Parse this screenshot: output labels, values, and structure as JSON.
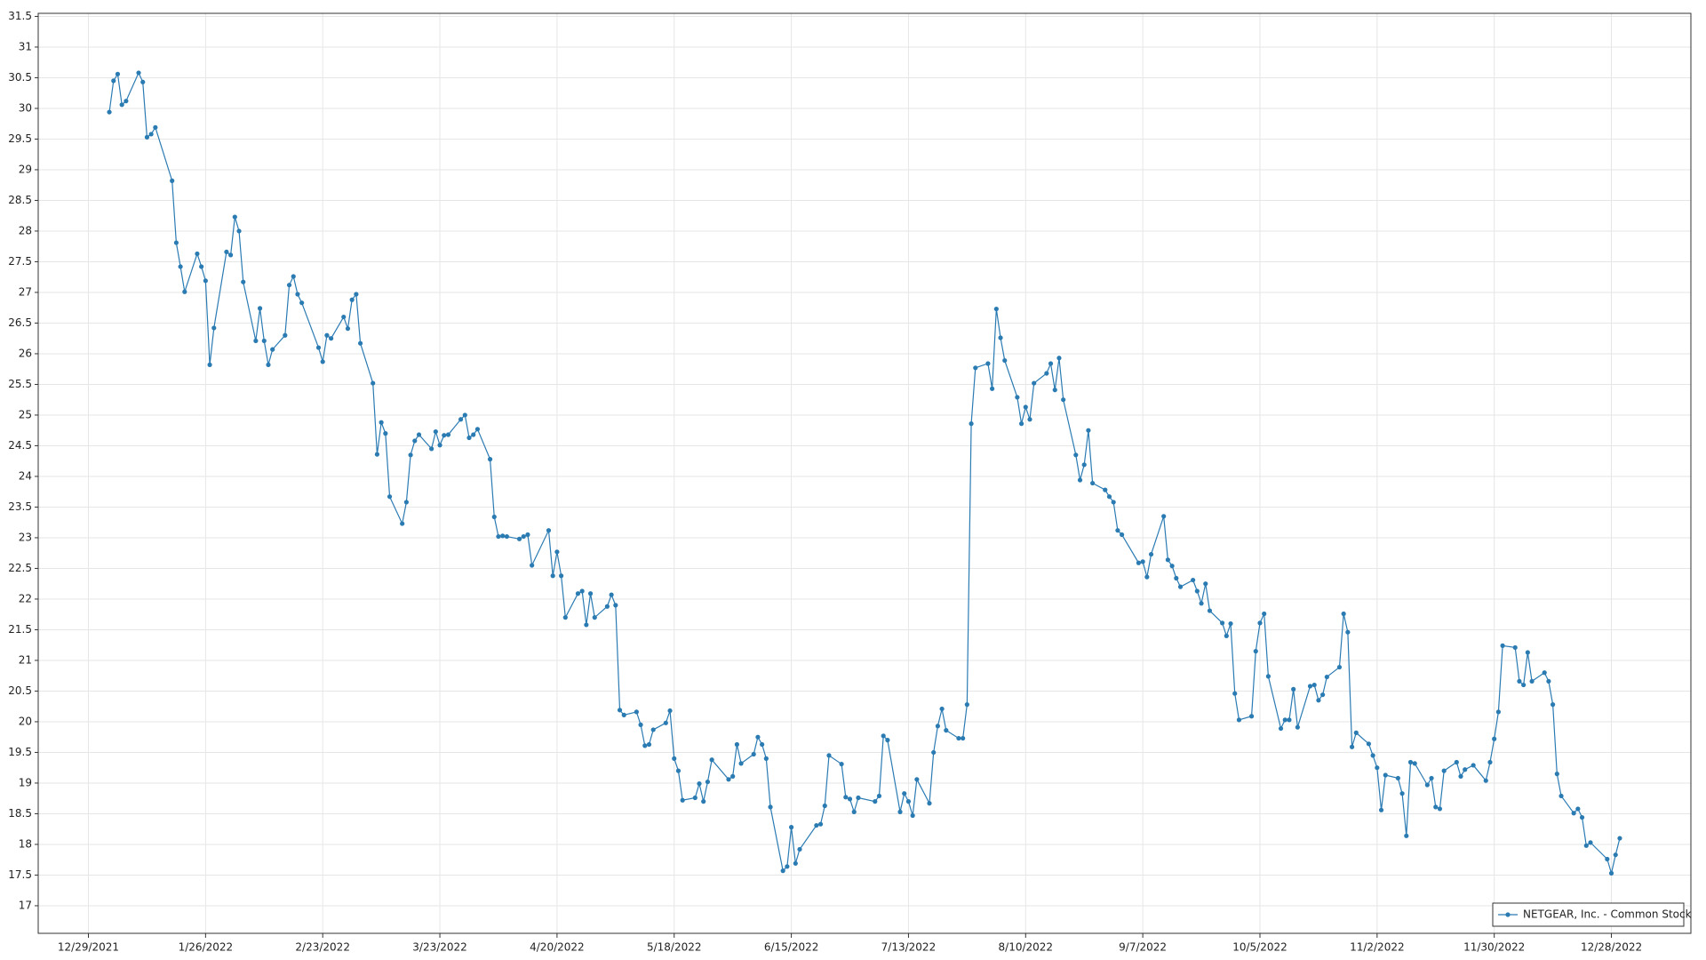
{
  "chart_data": {
    "type": "line",
    "x": [
      "2022-01-03",
      "2022-01-04",
      "2022-01-05",
      "2022-01-06",
      "2022-01-07",
      "2022-01-10",
      "2022-01-11",
      "2022-01-12",
      "2022-01-13",
      "2022-01-14",
      "2022-01-18",
      "2022-01-19",
      "2022-01-20",
      "2022-01-21",
      "2022-01-24",
      "2022-01-25",
      "2022-01-26",
      "2022-01-27",
      "2022-01-28",
      "2022-01-31",
      "2022-02-01",
      "2022-02-02",
      "2022-02-03",
      "2022-02-04",
      "2022-02-07",
      "2022-02-08",
      "2022-02-09",
      "2022-02-10",
      "2022-02-11",
      "2022-02-14",
      "2022-02-15",
      "2022-02-16",
      "2022-02-17",
      "2022-02-18",
      "2022-02-22",
      "2022-02-23",
      "2022-02-24",
      "2022-02-25",
      "2022-02-28",
      "2022-03-01",
      "2022-03-02",
      "2022-03-03",
      "2022-03-04",
      "2022-03-07",
      "2022-03-08",
      "2022-03-09",
      "2022-03-10",
      "2022-03-11",
      "2022-03-14",
      "2022-03-15",
      "2022-03-16",
      "2022-03-17",
      "2022-03-18",
      "2022-03-21",
      "2022-03-22",
      "2022-03-23",
      "2022-03-24",
      "2022-03-25",
      "2022-03-28",
      "2022-03-29",
      "2022-03-30",
      "2022-03-31",
      "2022-04-01",
      "2022-04-04",
      "2022-04-05",
      "2022-04-06",
      "2022-04-07",
      "2022-04-08",
      "2022-04-11",
      "2022-04-12",
      "2022-04-13",
      "2022-04-14",
      "2022-04-18",
      "2022-04-19",
      "2022-04-20",
      "2022-04-21",
      "2022-04-22",
      "2022-04-25",
      "2022-04-26",
      "2022-04-27",
      "2022-04-28",
      "2022-04-29",
      "2022-05-02",
      "2022-05-03",
      "2022-05-04",
      "2022-05-05",
      "2022-05-06",
      "2022-05-09",
      "2022-05-10",
      "2022-05-11",
      "2022-05-12",
      "2022-05-13",
      "2022-05-16",
      "2022-05-17",
      "2022-05-18",
      "2022-05-19",
      "2022-05-20",
      "2022-05-23",
      "2022-05-24",
      "2022-05-25",
      "2022-05-26",
      "2022-05-27",
      "2022-05-31",
      "2022-06-01",
      "2022-06-02",
      "2022-06-03",
      "2022-06-06",
      "2022-06-07",
      "2022-06-08",
      "2022-06-09",
      "2022-06-10",
      "2022-06-13",
      "2022-06-14",
      "2022-06-15",
      "2022-06-16",
      "2022-06-17",
      "2022-06-21",
      "2022-06-22",
      "2022-06-23",
      "2022-06-24",
      "2022-06-27",
      "2022-06-28",
      "2022-06-29",
      "2022-06-30",
      "2022-07-01",
      "2022-07-05",
      "2022-07-06",
      "2022-07-07",
      "2022-07-08",
      "2022-07-11",
      "2022-07-12",
      "2022-07-13",
      "2022-07-14",
      "2022-07-15",
      "2022-07-18",
      "2022-07-19",
      "2022-07-20",
      "2022-07-21",
      "2022-07-22",
      "2022-07-25",
      "2022-07-26",
      "2022-07-27",
      "2022-07-28",
      "2022-07-29",
      "2022-08-01",
      "2022-08-02",
      "2022-08-03",
      "2022-08-04",
      "2022-08-05",
      "2022-08-08",
      "2022-08-09",
      "2022-08-10",
      "2022-08-11",
      "2022-08-12",
      "2022-08-15",
      "2022-08-16",
      "2022-08-17",
      "2022-08-18",
      "2022-08-19",
      "2022-08-22",
      "2022-08-23",
      "2022-08-24",
      "2022-08-25",
      "2022-08-26",
      "2022-08-29",
      "2022-08-30",
      "2022-08-31",
      "2022-09-01",
      "2022-09-02",
      "2022-09-06",
      "2022-09-07",
      "2022-09-08",
      "2022-09-09",
      "2022-09-12",
      "2022-09-13",
      "2022-09-14",
      "2022-09-15",
      "2022-09-16",
      "2022-09-19",
      "2022-09-20",
      "2022-09-21",
      "2022-09-22",
      "2022-09-23",
      "2022-09-26",
      "2022-09-27",
      "2022-09-28",
      "2022-09-29",
      "2022-09-30",
      "2022-10-03",
      "2022-10-04",
      "2022-10-05",
      "2022-10-06",
      "2022-10-07",
      "2022-10-10",
      "2022-10-11",
      "2022-10-12",
      "2022-10-13",
      "2022-10-14",
      "2022-10-17",
      "2022-10-18",
      "2022-10-19",
      "2022-10-20",
      "2022-10-21",
      "2022-10-24",
      "2022-10-25",
      "2022-10-26",
      "2022-10-27",
      "2022-10-28",
      "2022-10-31",
      "2022-11-01",
      "2022-11-02",
      "2022-11-03",
      "2022-11-04",
      "2022-11-07",
      "2022-11-08",
      "2022-11-09",
      "2022-11-10",
      "2022-11-11",
      "2022-11-14",
      "2022-11-15",
      "2022-11-16",
      "2022-11-17",
      "2022-11-18",
      "2022-11-21",
      "2022-11-22",
      "2022-11-23",
      "2022-11-25",
      "2022-11-28",
      "2022-11-29",
      "2022-11-30",
      "2022-12-01",
      "2022-12-02",
      "2022-12-05",
      "2022-12-06",
      "2022-12-07",
      "2022-12-08",
      "2022-12-09",
      "2022-12-12",
      "2022-12-13",
      "2022-12-14",
      "2022-12-15",
      "2022-12-16",
      "2022-12-19",
      "2022-12-20",
      "2022-12-21",
      "2022-12-22",
      "2022-12-23",
      "2022-12-27",
      "2022-12-28",
      "2022-12-29",
      "2022-12-30"
    ],
    "series": [
      {
        "name": "NETGEAR, Inc. - Common Stock",
        "color": "#2b7bb3",
        "values": [
          29.94,
          30.45,
          30.56,
          30.06,
          30.12,
          30.58,
          30.43,
          29.53,
          29.58,
          29.69,
          28.82,
          27.81,
          27.42,
          27.01,
          27.63,
          27.42,
          27.19,
          25.82,
          26.42,
          27.66,
          27.61,
          28.23,
          28.0,
          27.17,
          26.21,
          26.74,
          26.21,
          25.82,
          26.07,
          26.3,
          27.12,
          27.26,
          26.97,
          26.83,
          26.1,
          25.87,
          26.3,
          26.25,
          26.6,
          26.41,
          26.88,
          26.97,
          26.17,
          25.52,
          24.36,
          24.88,
          24.7,
          23.67,
          23.23,
          23.58,
          24.35,
          24.58,
          24.68,
          24.45,
          24.73,
          24.51,
          24.67,
          24.68,
          24.93,
          25.0,
          24.63,
          24.68,
          24.77,
          24.28,
          23.34,
          23.02,
          23.03,
          23.02,
          22.98,
          23.02,
          23.05,
          22.55,
          23.12,
          22.38,
          22.77,
          22.38,
          21.7,
          22.09,
          22.13,
          21.58,
          22.09,
          21.7,
          21.88,
          22.07,
          21.9,
          20.19,
          20.11,
          20.16,
          19.95,
          19.61,
          19.63,
          19.87,
          19.98,
          20.18,
          19.4,
          19.2,
          18.72,
          18.76,
          18.99,
          18.7,
          19.02,
          19.38,
          19.06,
          19.11,
          19.63,
          19.32,
          19.47,
          19.75,
          19.63,
          19.4,
          18.61,
          17.57,
          17.64,
          18.28,
          17.69,
          17.92,
          18.31,
          18.33,
          18.63,
          19.45,
          19.31,
          18.77,
          18.74,
          18.53,
          18.76,
          18.7,
          18.79,
          19.77,
          19.7,
          18.53,
          18.83,
          18.7,
          18.47,
          19.06,
          18.67,
          19.5,
          19.93,
          20.21,
          19.86,
          19.73,
          19.73,
          20.28,
          24.86,
          25.77,
          25.84,
          25.43,
          26.73,
          26.26,
          25.89,
          25.29,
          24.86,
          25.13,
          24.93,
          25.52,
          25.68,
          25.84,
          25.41,
          25.93,
          25.25,
          24.35,
          23.94,
          24.19,
          24.75,
          23.89,
          23.78,
          23.67,
          23.58,
          23.12,
          23.05,
          22.59,
          22.61,
          22.36,
          22.73,
          23.35,
          22.64,
          22.54,
          22.34,
          22.2,
          22.31,
          22.13,
          21.93,
          22.25,
          21.81,
          21.61,
          21.4,
          21.6,
          20.46,
          20.03,
          20.09,
          21.15,
          21.61,
          21.76,
          20.74,
          19.89,
          20.03,
          20.03,
          20.53,
          19.91,
          20.58,
          20.6,
          20.35,
          20.44,
          20.73,
          20.89,
          21.76,
          21.46,
          19.59,
          19.82,
          19.64,
          19.45,
          19.25,
          18.56,
          19.13,
          19.08,
          18.83,
          18.14,
          19.34,
          19.32,
          18.97,
          19.08,
          18.61,
          18.58,
          19.2,
          19.34,
          19.11,
          19.22,
          19.29,
          19.04,
          19.34,
          19.72,
          20.16,
          21.24,
          21.21,
          20.66,
          20.6,
          21.13,
          20.66,
          20.8,
          20.66,
          20.28,
          19.15,
          18.79,
          18.51,
          18.58,
          18.44,
          17.98,
          18.03,
          17.76,
          17.53,
          17.83,
          18.1
        ]
      }
    ],
    "xlim": [
      "2021-12-17",
      "2023-01-16"
    ],
    "xticks": [
      {
        "value": "2021-12-29",
        "label": "12/29/2021"
      },
      {
        "value": "2022-01-26",
        "label": "1/26/2022"
      },
      {
        "value": "2022-02-23",
        "label": "2/23/2022"
      },
      {
        "value": "2022-03-23",
        "label": "3/23/2022"
      },
      {
        "value": "2022-04-20",
        "label": "4/20/2022"
      },
      {
        "value": "2022-05-18",
        "label": "5/18/2022"
      },
      {
        "value": "2022-06-15",
        "label": "6/15/2022"
      },
      {
        "value": "2022-07-13",
        "label": "7/13/2022"
      },
      {
        "value": "2022-08-10",
        "label": "8/10/2022"
      },
      {
        "value": "2022-09-07",
        "label": "9/7/2022"
      },
      {
        "value": "2022-10-05",
        "label": "10/5/2022"
      },
      {
        "value": "2022-11-02",
        "label": "11/2/2022"
      },
      {
        "value": "2022-11-30",
        "label": "11/30/2022"
      },
      {
        "value": "2022-12-28",
        "label": "12/28/2022"
      }
    ],
    "ylim": [
      16.55,
      31.55
    ],
    "yticks": [
      17,
      17.5,
      18,
      18.5,
      19,
      19.5,
      20,
      20.5,
      21,
      21.5,
      22,
      22.5,
      23,
      23.5,
      24,
      24.5,
      25,
      25.5,
      26,
      26.5,
      27,
      27.5,
      28,
      28.5,
      29,
      29.5,
      30,
      30.5,
      31,
      31.5
    ],
    "grid": true,
    "legend": "lower right"
  }
}
